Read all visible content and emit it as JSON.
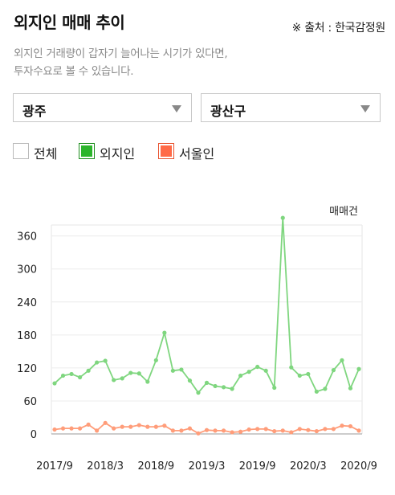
{
  "header": {
    "title": "외지인 매매 추이",
    "source": "※ 출처 : 한국감정원"
  },
  "description": {
    "line1": "외지인 거래량이 갑자기 늘어나는 시기가 있다면,",
    "line2": "투자수요로 볼 수 있습니다."
  },
  "filters": {
    "city": "광주",
    "district": "광산구"
  },
  "legend": [
    {
      "label": "전체",
      "color": "#ffffff",
      "border": "#bbbbbb",
      "checked": false
    },
    {
      "label": "외지인",
      "color": "#2cb52c",
      "border": "#1e8e1e",
      "checked": true
    },
    {
      "label": "서울인",
      "color": "#ff6a47",
      "border": "#e8532f",
      "checked": true
    }
  ],
  "chart_data": {
    "type": "line",
    "ylabel": "매매건",
    "ylim": [
      0,
      380
    ],
    "yticks": [
      0,
      60,
      120,
      180,
      240,
      300,
      360
    ],
    "xticks": [
      "2017/9",
      "2018/3",
      "2018/9",
      "2019/3",
      "2019/9",
      "2020/3",
      "2020/9"
    ],
    "x": [
      "2017/9",
      "2017/10",
      "2017/11",
      "2017/12",
      "2018/1",
      "2018/2",
      "2018/3",
      "2018/4",
      "2018/5",
      "2018/6",
      "2018/7",
      "2018/8",
      "2018/9",
      "2018/10",
      "2018/11",
      "2018/12",
      "2019/1",
      "2019/2",
      "2019/3",
      "2019/4",
      "2019/5",
      "2019/6",
      "2019/7",
      "2019/8",
      "2019/9",
      "2019/10",
      "2019/11",
      "2019/12",
      "2020/1",
      "2020/2",
      "2020/3",
      "2020/4",
      "2020/5",
      "2020/6",
      "2020/7",
      "2020/8",
      "2020/9"
    ],
    "series": [
      {
        "name": "외지인",
        "color": "#7fd67f",
        "values": [
          92,
          106,
          109,
          103,
          115,
          130,
          133,
          98,
          101,
          111,
          110,
          95,
          134,
          184,
          115,
          117,
          97,
          75,
          93,
          87,
          85,
          82,
          106,
          113,
          122,
          115,
          84,
          393,
          121,
          106,
          109,
          77,
          82,
          116,
          134,
          83,
          118
        ]
      },
      {
        "name": "서울인",
        "color": "#ff9d7a",
        "values": [
          8,
          10,
          10,
          10,
          17,
          6,
          20,
          10,
          13,
          13,
          16,
          13,
          13,
          15,
          6,
          6,
          10,
          1,
          7,
          6,
          6,
          3,
          4,
          8,
          9,
          9,
          5,
          6,
          3,
          9,
          7,
          5,
          9,
          9,
          15,
          14,
          6
        ]
      }
    ]
  }
}
